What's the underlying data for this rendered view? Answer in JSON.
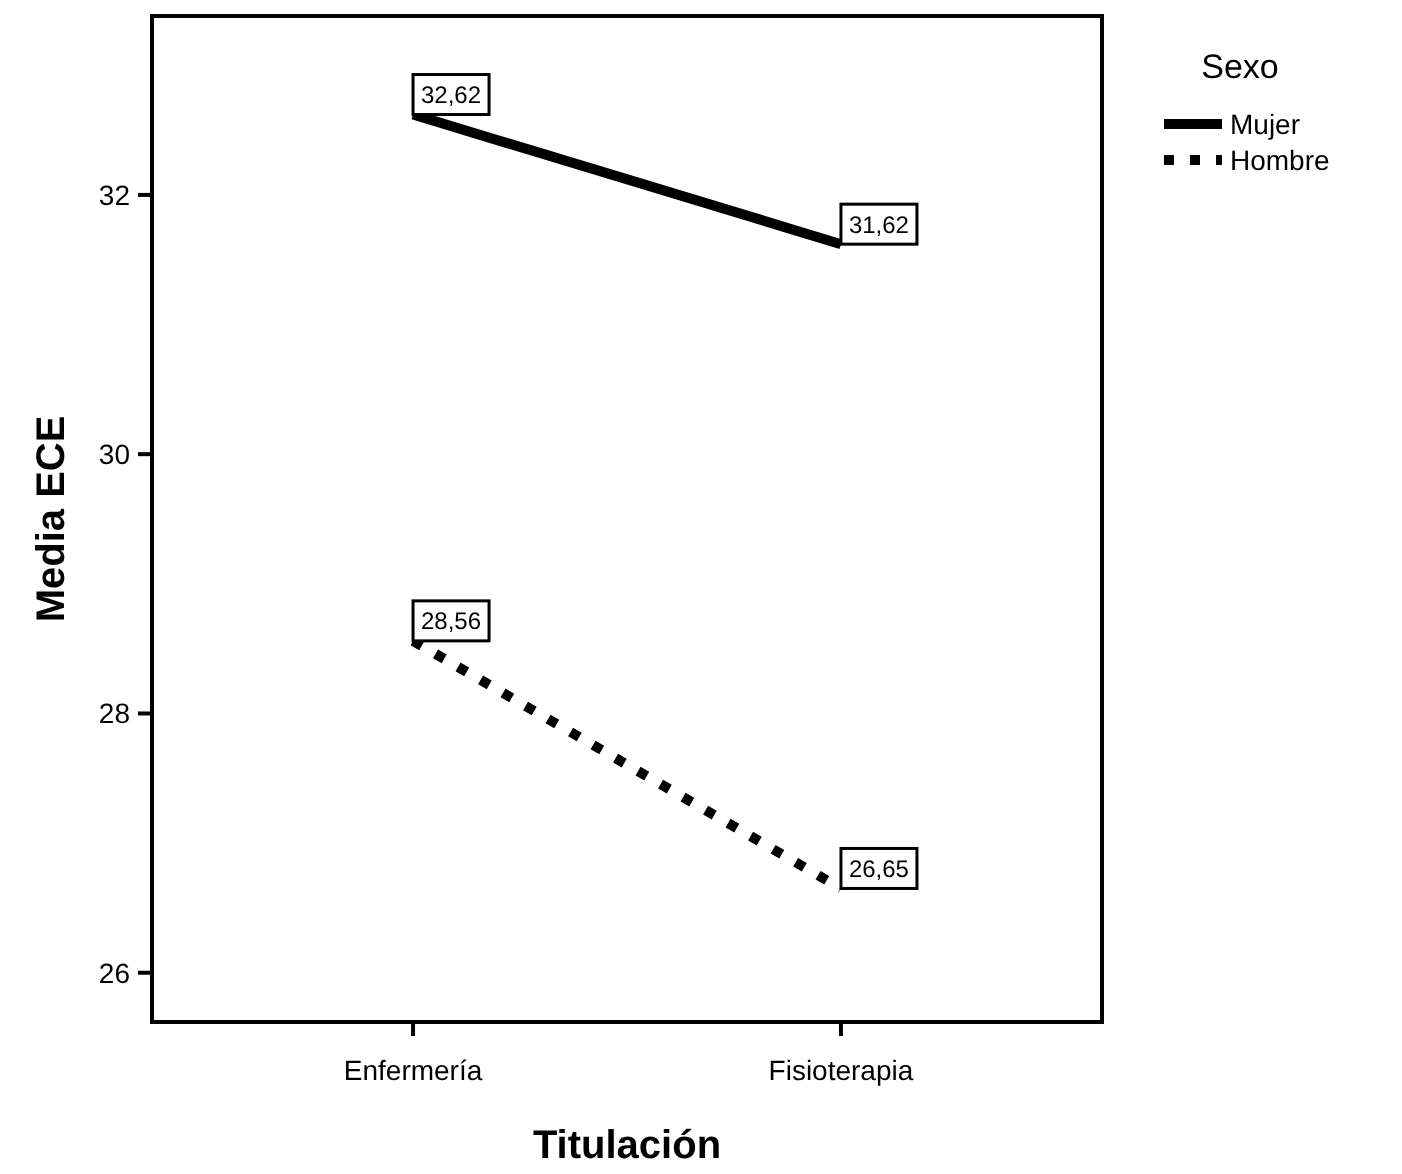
{
  "chart_data": {
    "type": "line",
    "xlabel": "Titulación",
    "ylabel": "Media ECE",
    "legend_title": "Sexo",
    "legend": "top right",
    "categories": [
      "Enfermería",
      "Fisioterapia"
    ],
    "series": [
      {
        "name": "Mujer",
        "color": "#000000",
        "values": [
          32.62,
          31.62
        ],
        "value_labels": [
          "32,62",
          "31,62"
        ],
        "line_style": "solid"
      },
      {
        "name": "Hombre",
        "color": "#000000",
        "values": [
          28.56,
          26.65
        ],
        "value_labels": [
          "28,56",
          "26,65"
        ],
        "line_style": "dotted"
      }
    ],
    "ylim": [
      25.62,
      33.38
    ],
    "yticks": [
      26,
      28,
      30,
      32
    ]
  }
}
